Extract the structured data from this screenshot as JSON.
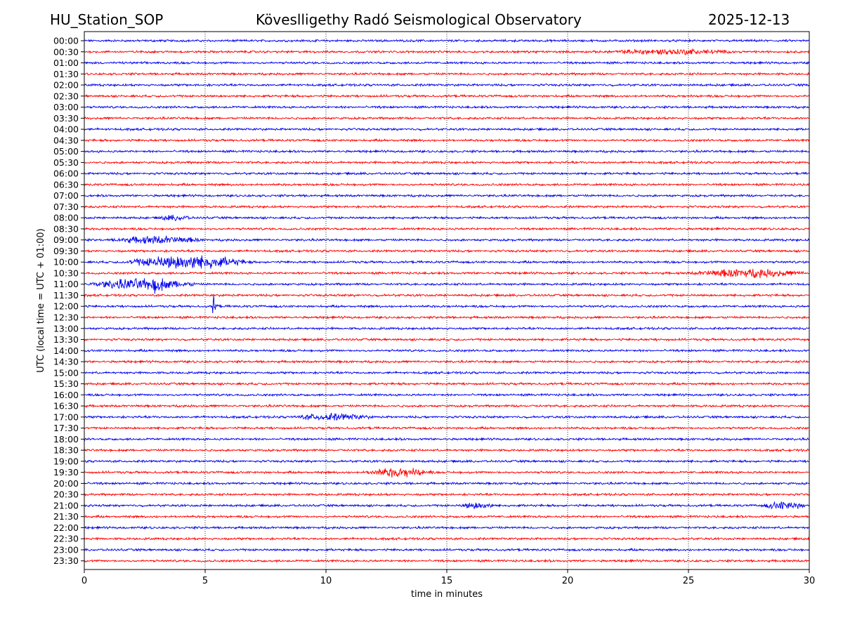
{
  "header": {
    "station": "HU_Station_SOP",
    "title": "Köveslligethy Radó Seismological Observatory",
    "date": "2025-12-13"
  },
  "chart_data": {
    "type": "line",
    "title": "Köveslligethy Radó Seismological Observatory",
    "xlabel": "time in minutes",
    "ylabel": "UTC (local time = UTC + 01:00)",
    "xlim": [
      0,
      30
    ],
    "xticks": [
      0,
      5,
      10,
      15,
      20,
      25,
      30
    ],
    "grid": "vertical dotted lines at x ticks",
    "trace_colors": [
      "#0000ee",
      "#ff0000"
    ],
    "trace_color_rule": "alternating by row: blue for :00 rows, red for :30 rows",
    "rows": [
      "00:00",
      "00:30",
      "01:00",
      "01:30",
      "02:00",
      "02:30",
      "03:00",
      "03:30",
      "04:00",
      "04:30",
      "05:00",
      "05:30",
      "06:00",
      "06:30",
      "07:00",
      "07:30",
      "08:00",
      "08:30",
      "09:00",
      "09:30",
      "10:00",
      "10:30",
      "11:00",
      "11:30",
      "12:00",
      "12:30",
      "13:00",
      "13:30",
      "14:00",
      "14:30",
      "15:00",
      "15:30",
      "16:00",
      "16:30",
      "17:00",
      "17:30",
      "18:00",
      "18:30",
      "19:00",
      "19:30",
      "20:00",
      "20:30",
      "21:00",
      "21:30",
      "22:00",
      "22:30",
      "23:00",
      "23:30"
    ],
    "baseline_noise": 0.28,
    "events": [
      {
        "row": "00:30",
        "start": 21.5,
        "end": 27,
        "amp": 0.55,
        "kind": "noise"
      },
      {
        "row": "08:00",
        "start": 3,
        "end": 4.5,
        "amp": 0.5,
        "kind": "noise"
      },
      {
        "row": "09:00",
        "start": 1,
        "end": 5,
        "amp": 0.8,
        "kind": "noise"
      },
      {
        "row": "10:00",
        "start": 1.5,
        "end": 7,
        "amp": 1.6,
        "kind": "noise"
      },
      {
        "row": "10:30",
        "start": 25,
        "end": 30,
        "amp": 0.9,
        "kind": "noise"
      },
      {
        "row": "11:00",
        "start": 0,
        "end": 4.8,
        "amp": 1.2,
        "kind": "noise"
      },
      {
        "row": "11:00",
        "start": 2.9,
        "end": 4.2,
        "amp": 4.5,
        "kind": "spike"
      },
      {
        "row": "12:00",
        "start": 5.3,
        "end": 5.8,
        "amp": 4.0,
        "kind": "spike"
      },
      {
        "row": "17:00",
        "start": 8.5,
        "end": 12,
        "amp": 0.7,
        "kind": "noise"
      },
      {
        "row": "19:30",
        "start": 11.5,
        "end": 14.5,
        "amp": 1.0,
        "kind": "noise"
      },
      {
        "row": "21:00",
        "start": 15.5,
        "end": 17,
        "amp": 0.7,
        "kind": "noise"
      },
      {
        "row": "21:00",
        "start": 28,
        "end": 30,
        "amp": 0.8,
        "kind": "noise"
      }
    ]
  }
}
